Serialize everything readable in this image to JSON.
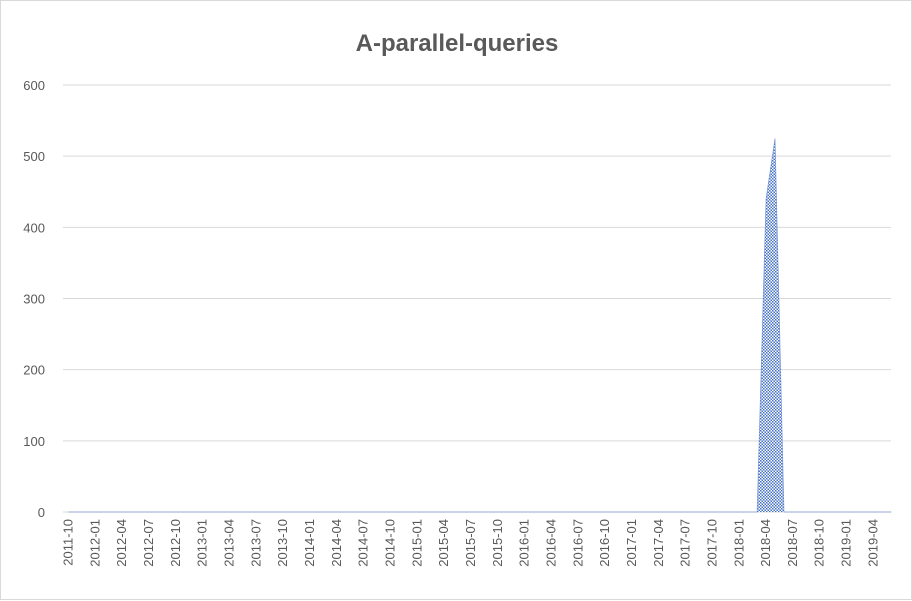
{
  "chart_data": {
    "type": "area",
    "title": "A-parallel-queries",
    "xlabel": "",
    "ylabel": "",
    "ylim": [
      0,
      600
    ],
    "yticks": [
      0,
      100,
      200,
      300,
      400,
      500,
      600
    ],
    "grid": "horizontal",
    "legend": "none",
    "x_tick_labels": [
      "2011-10",
      "2012-01",
      "2012-04",
      "2012-07",
      "2012-10",
      "2013-01",
      "2013-04",
      "2013-07",
      "2013-10",
      "2014-01",
      "2014-04",
      "2014-07",
      "2014-10",
      "2015-01",
      "2015-04",
      "2015-07",
      "2015-10",
      "2016-01",
      "2016-04",
      "2016-07",
      "2016-10",
      "2017-01",
      "2017-04",
      "2017-07",
      "2017-10",
      "2018-01",
      "2018-04",
      "2018-07",
      "2018-10",
      "2019-01",
      "2019-04"
    ],
    "series": [
      {
        "points": [
          {
            "x": "2011-10",
            "y": 0
          },
          {
            "x": "2018-03",
            "y": 0
          },
          {
            "x": "2018-04",
            "y": 440
          },
          {
            "x": "2018-05",
            "y": 525
          },
          {
            "x": "2018-06",
            "y": 0
          },
          {
            "x": "2019-06",
            "y": 0
          }
        ]
      }
    ],
    "colors": {
      "area": "#4472c4",
      "grid": "#d9d9d9",
      "text": "#595959"
    }
  }
}
